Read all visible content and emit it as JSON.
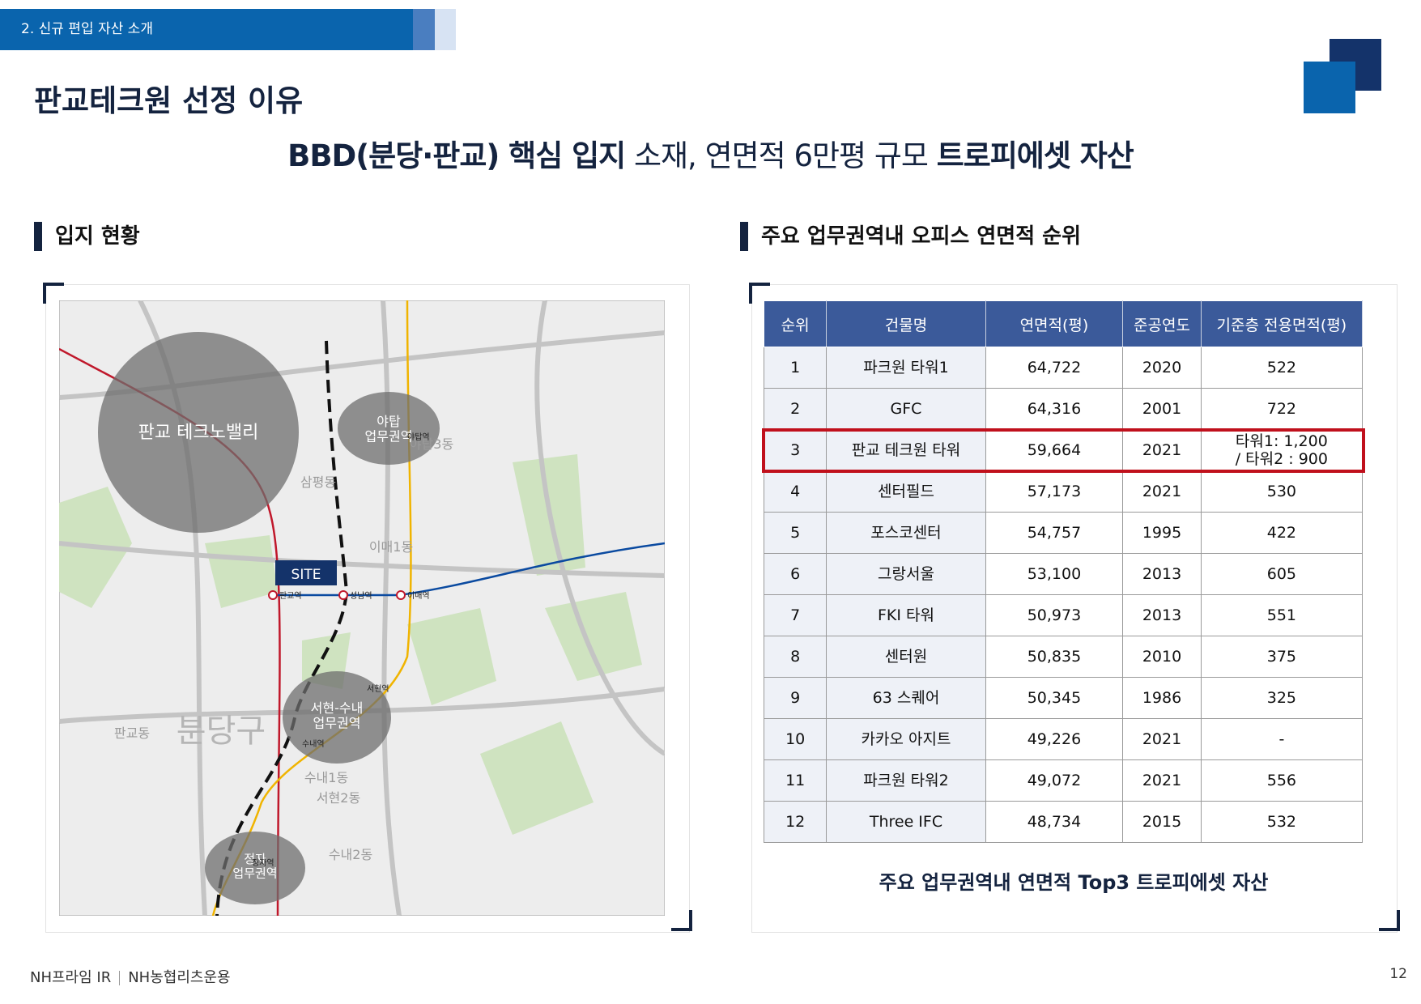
{
  "header": {
    "section": "2. 신규 편입 자산 소개",
    "title": "판교테크원 선정 이유",
    "headline": [
      {
        "text": "BBD(분당·판교) 핵심 입지",
        "bold": true
      },
      {
        "text": " 소재, 연면적 6만평 규모 ",
        "bold": false
      },
      {
        "text": "트로피에셋 자산",
        "bold": true
      }
    ]
  },
  "left": {
    "heading": "입지 현황",
    "map": {
      "zones": [
        "판교 테크노밸리",
        "야탑\n업무권역",
        "서현-수내\n업무권역",
        "정자\n업무권역"
      ],
      "site": "SITE",
      "stations": [
        "판교역",
        "성남역",
        "이매역",
        "서현역",
        "수내역",
        "정자역",
        "야탑역"
      ],
      "places": [
        "판교동",
        "분당구",
        "삼평동",
        "이매1동",
        "서현2동",
        "수내1동",
        "수내2동",
        "야탑3동"
      ]
    }
  },
  "right": {
    "heading": "주요 업무권역내 오피스 연면적 순위",
    "table": {
      "headers": [
        "순위",
        "건물명",
        "연면적(평)",
        "준공연도",
        "기준층 전용면적(평)"
      ],
      "rows": [
        [
          "1",
          "파크원 타워1",
          "64,722",
          "2020",
          "522"
        ],
        [
          "2",
          "GFC",
          "64,316",
          "2001",
          "722"
        ],
        [
          "3",
          "판교 테크원 타워",
          "59,664",
          "2021",
          "타워1: 1,200\n/ 타워2 : 900"
        ],
        [
          "4",
          "센터필드",
          "57,173",
          "2021",
          "530"
        ],
        [
          "5",
          "포스코센터",
          "54,757",
          "1995",
          "422"
        ],
        [
          "6",
          "그랑서울",
          "53,100",
          "2013",
          "605"
        ],
        [
          "7",
          "FKI 타워",
          "50,973",
          "2013",
          "551"
        ],
        [
          "8",
          "센터원",
          "50,835",
          "2010",
          "375"
        ],
        [
          "9",
          "63 스퀘어",
          "50,345",
          "1986",
          "325"
        ],
        [
          "10",
          "카카오 아지트",
          "49,226",
          "2021",
          "-"
        ],
        [
          "11",
          "파크원 타워2",
          "49,072",
          "2021",
          "556"
        ],
        [
          "12",
          "Three IFC",
          "48,734",
          "2015",
          "532"
        ]
      ],
      "highlight_row": 2
    },
    "caption": "주요 업무권역내 연면적 Top3 트로피에셋 자산"
  },
  "footer": {
    "left": "NH프라임 IR",
    "right": "NH농협리츠운용",
    "page": "12"
  }
}
